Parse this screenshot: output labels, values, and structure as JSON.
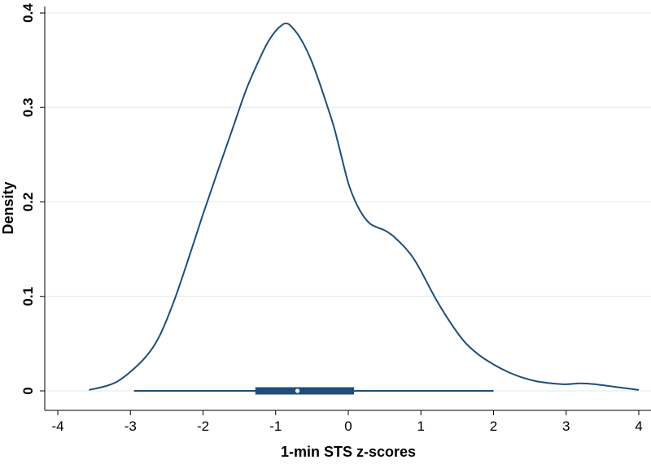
{
  "chart_data": {
    "type": "line",
    "title": "",
    "xlabel": "1-min STS z-scores",
    "ylabel": "Density",
    "xlim": [
      -4,
      4
    ],
    "ylim": [
      0,
      0.4
    ],
    "x_ticks": [
      "-4",
      "-3",
      "-2",
      "-1",
      "0",
      "1",
      "2",
      "3",
      "4"
    ],
    "y_ticks": [
      "0",
      "0.1",
      "0.2",
      "0.3",
      "0.4"
    ],
    "grid": "horizontal",
    "legend": "none",
    "series": [
      {
        "type": "density",
        "x": [
          -3.57,
          -3.3,
          -3.1,
          -2.8,
          -2.6,
          -2.4,
          -2.2,
          -2.0,
          -1.8,
          -1.6,
          -1.4,
          -1.2,
          -1.1,
          -1.0,
          -0.9,
          -0.85,
          -0.8,
          -0.7,
          -0.6,
          -0.5,
          -0.4,
          -0.3,
          -0.2,
          -0.1,
          0.0,
          0.1,
          0.2,
          0.3,
          0.4,
          0.5,
          0.6,
          0.7,
          0.8,
          0.9,
          1.0,
          1.2,
          1.4,
          1.6,
          1.8,
          2.0,
          2.2,
          2.4,
          2.6,
          2.8,
          3.0,
          3.2,
          3.4,
          3.6,
          3.8,
          4.0
        ],
        "y": [
          0.001,
          0.006,
          0.014,
          0.035,
          0.058,
          0.095,
          0.14,
          0.187,
          0.232,
          0.276,
          0.32,
          0.355,
          0.37,
          0.381,
          0.388,
          0.389,
          0.387,
          0.378,
          0.365,
          0.348,
          0.327,
          0.304,
          0.28,
          0.25,
          0.22,
          0.2,
          0.186,
          0.177,
          0.173,
          0.17,
          0.165,
          0.158,
          0.15,
          0.14,
          0.127,
          0.098,
          0.073,
          0.052,
          0.038,
          0.028,
          0.02,
          0.014,
          0.01,
          0.008,
          0.007,
          0.008,
          0.007,
          0.005,
          0.003,
          0.001
        ],
        "color": "#1f4e79"
      }
    ],
    "boxplot": {
      "whisker_low": -2.95,
      "q1": -1.28,
      "median": -0.7,
      "q3": 0.08,
      "whisker_high": 2.0,
      "color": "#1f4e79"
    }
  },
  "colors": {
    "line": "#1f4e79",
    "grid": "#e3eef3",
    "axis": "#000000"
  }
}
